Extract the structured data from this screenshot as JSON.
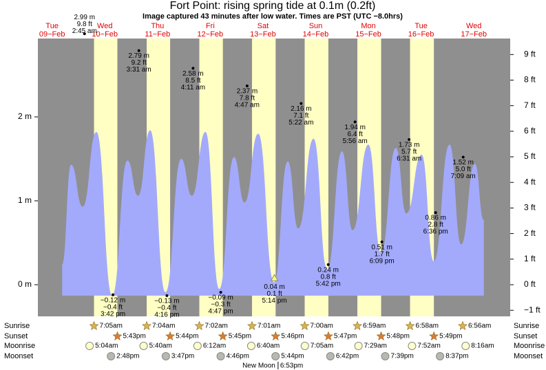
{
  "chart_data": {
    "type": "area",
    "title": "Fort Point: rising  spring tide at 0.1m (0.2ft)",
    "subtitle": "Image captured 43 minutes after low water. Times are PST (UTC −8.0hrs)",
    "color": "#a3aafc",
    "night_color": "#8f8f8f",
    "day_color": "#ffffc4",
    "xlim": [
      9.23,
      18.19
    ],
    "xticks": [
      {
        "value": 9.5,
        "label": "09−Feb"
      },
      {
        "value": 10.5,
        "label": "10−Feb"
      },
      {
        "value": 11.5,
        "label": "11−Feb"
      },
      {
        "value": 12.5,
        "label": "12−Feb"
      },
      {
        "value": 13.5,
        "label": "13−Feb"
      },
      {
        "value": 14.5,
        "label": "14−Feb"
      },
      {
        "value": 15.5,
        "label": "15−Feb"
      },
      {
        "value": 16.5,
        "label": "16−Feb"
      },
      {
        "value": 17.5,
        "label": "17−Feb"
      }
    ],
    "weekdays": [
      "Tue",
      "Wed",
      "Thu",
      "Fri",
      "Sat",
      "Sun",
      "Mon",
      "Tue",
      "Wed"
    ],
    "ylim": [
      -0.377,
      2.934
    ],
    "yticks": [
      {
        "value": 0,
        "label": "0 m"
      },
      {
        "value": 1,
        "label": "1 m"
      },
      {
        "value": 2,
        "label": "2 m"
      }
    ],
    "y2lim": [
      -1.237,
      9.626
    ],
    "y2ticks": [
      {
        "value": -1,
        "label": "−1 ft"
      },
      {
        "value": 0,
        "label": "0 ft"
      },
      {
        "value": 1,
        "label": "1 ft"
      },
      {
        "value": 2,
        "label": "2 ft"
      },
      {
        "value": 3,
        "label": "3 ft"
      },
      {
        "value": 4,
        "label": "4 ft"
      },
      {
        "value": 5,
        "label": "5 ft"
      },
      {
        "value": 6,
        "label": "6 ft"
      },
      {
        "value": 7,
        "label": "7 ft"
      },
      {
        "value": 8,
        "label": "8 ft"
      },
      {
        "value": 9,
        "label": "9 ft"
      }
    ],
    "x": [
      9.69,
      9.86,
      10.08,
      10.34,
      10.64,
      10.93,
      11.13,
      11.36,
      11.65,
      11.95,
      12.15,
      12.41,
      12.67,
      12.95,
      13.15,
      13.41,
      13.71,
      13.97,
      14.17,
      14.46,
      14.72,
      15.0,
      15.2,
      15.5,
      15.74,
      16.02,
      16.22,
      16.51,
      16.74,
      17.04,
      17.26,
      17.52,
      17.69
    ],
    "values": [
      0.24,
      1.43,
      0.93,
      1.82,
      -0.13,
      1.48,
      1.06,
      1.84,
      -0.09,
      1.5,
      1.06,
      1.82,
      -0.05,
      1.52,
      0.98,
      1.8,
      0.03,
      1.47,
      0.67,
      1.74,
      0.18,
      1.59,
      0.65,
      1.67,
      0.38,
      1.63,
      0.85,
      1.55,
      0.28,
      1.67,
      0.48,
      1.44,
      0.77
    ],
    "extremes": {
      "x": [
        10.115,
        10.654,
        11.146,
        11.678,
        12.174,
        12.699,
        13.199,
        13.718,
        14.224,
        14.738,
        15.247,
        15.756,
        16.272,
        16.775,
        17.298
      ],
      "values": [
        2.99,
        -0.12,
        2.79,
        -0.13,
        2.58,
        -0.09,
        2.37,
        0.04,
        2.16,
        0.24,
        1.94,
        0.51,
        1.73,
        0.86,
        1.52
      ],
      "value_labels": [
        "2.99 m",
        "−0.12 m",
        "2.79 m",
        "−0.13 m",
        "2.58 m",
        "−0.09 m",
        "2.37 m",
        "0.04 m",
        "2.16 m",
        "0.24 m",
        "1.94 m",
        "0.51 m",
        "1.73 m",
        "0.86 m",
        "1.52 m"
      ],
      "ft_labels": [
        "9.8 ft",
        "−0.4 ft",
        "9.2 ft",
        "−0.4 ft",
        "8.5 ft",
        "−0.3 ft",
        "7.8 ft",
        "0.1 ft",
        "7.1 ft",
        "0.8 ft",
        "6.4 ft",
        "1.7 ft",
        "5.7 ft",
        "2.8 ft",
        "5.0 ft"
      ],
      "times": [
        "2:45 am",
        "3:42 pm",
        "3:31 am",
        "4:16 pm",
        "4:11 am",
        "4:47 pm",
        "4:47 am",
        "5:14 pm",
        "5:22 am",
        "5:42 pm",
        "5:56 am",
        "6:09 pm",
        "6:31 am",
        "6:36 pm",
        "7:09 am"
      ],
      "markers": [
        "dot",
        "dot",
        "dot",
        "dot",
        "dot",
        "dot",
        "dot",
        "triangle",
        "dot",
        "dot",
        "dot",
        "dot",
        "dot",
        "dot",
        "dot"
      ]
    },
    "almanac": [
      {
        "label": "Sunrise",
        "icon": "sunrise",
        "days": [
          10,
          11,
          12,
          13,
          14,
          15,
          16,
          17
        ],
        "times": [
          "7:05am",
          "7:04am",
          "7:02am",
          "7:01am",
          "7:00am",
          "6:59am",
          "6:58am",
          "6:56am"
        ]
      },
      {
        "label": "Sunset",
        "icon": "sunset",
        "days": [
          10,
          11,
          12,
          13,
          14,
          15,
          16
        ],
        "times": [
          "5:43pm",
          "5:44pm",
          "5:45pm",
          "5:46pm",
          "5:47pm",
          "5:48pm",
          "5:49pm"
        ]
      },
      {
        "label": "Moonrise",
        "icon": "moonrise",
        "days": [
          10,
          11,
          12,
          13,
          14,
          15,
          16,
          17
        ],
        "times": [
          "5:04am",
          "5:40am",
          "6:12am",
          "6:40am",
          "7:05am",
          "7:29am",
          "7:52am",
          "8:16am"
        ]
      },
      {
        "label": "Moonset",
        "icon": "moonset",
        "days": [
          10,
          11,
          12,
          13,
          14,
          15,
          16
        ],
        "times": [
          "2:48pm",
          "3:47pm",
          "4:46pm",
          "5:44pm",
          "6:42pm",
          "7:39pm",
          "8:37pm"
        ]
      }
    ],
    "moon_phase": {
      "label": "New Moon",
      "day": 13,
      "time": "6:53pm"
    }
  }
}
